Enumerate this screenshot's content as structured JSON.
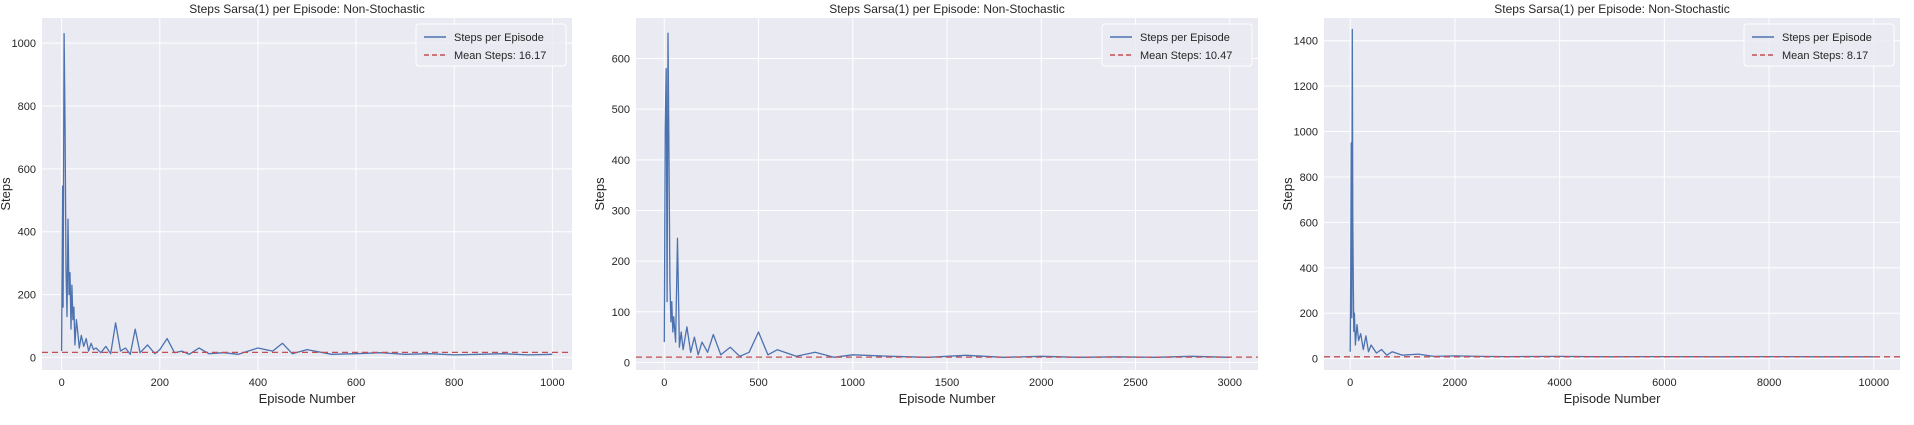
{
  "figure": {
    "background": "#ffffff",
    "plot_background": "#eaeaf2",
    "grid_color": "#ffffff",
    "series_color": "#4c72b0",
    "mean_color": "#c44e52"
  },
  "chart_data": [
    {
      "type": "line",
      "title": "Steps Sarsa(1) per Episode: Non-Stochastic",
      "xlabel": "Episode Number",
      "ylabel": "Steps",
      "xlim": [
        -40,
        1040
      ],
      "ylim": [
        -40,
        1080
      ],
      "xticks": [
        0,
        200,
        400,
        600,
        800,
        1000
      ],
      "yticks": [
        0,
        200,
        400,
        600,
        800,
        1000
      ],
      "grid": true,
      "legend_position": "top-right",
      "legend": [
        "Steps per Episode",
        "Mean Steps: 16.17"
      ],
      "mean": 16.17,
      "n_episodes": 1000,
      "series": [
        {
          "name": "Steps per Episode",
          "x": [
            0,
            2,
            3,
            5,
            7,
            9,
            11,
            13,
            15,
            17,
            19,
            21,
            23,
            25,
            27,
            30,
            33,
            36,
            40,
            45,
            50,
            55,
            60,
            65,
            70,
            80,
            90,
            100,
            110,
            120,
            130,
            140,
            150,
            160,
            175,
            190,
            200,
            215,
            230,
            245,
            260,
            280,
            300,
            330,
            360,
            400,
            430,
            450,
            470,
            500,
            550,
            600,
            650,
            700,
            750,
            800,
            850,
            900,
            950,
            1000
          ],
          "y": [
            20,
            545,
            160,
            1030,
            720,
            280,
            130,
            440,
            200,
            270,
            90,
            230,
            120,
            160,
            40,
            120,
            80,
            30,
            70,
            35,
            60,
            20,
            45,
            25,
            30,
            15,
            35,
            12,
            110,
            20,
            30,
            10,
            90,
            15,
            40,
            12,
            25,
            60,
            15,
            20,
            10,
            30,
            12,
            15,
            10,
            30,
            20,
            45,
            12,
            25,
            10,
            12,
            15,
            10,
            12,
            8,
            10,
            12,
            8,
            10
          ]
        }
      ]
    },
    {
      "type": "line",
      "title": "Steps Sarsa(1) per Episode: Non-Stochastic",
      "xlabel": "Episode Number",
      "ylabel": "Steps",
      "xlim": [
        -150,
        3150
      ],
      "ylim": [
        -15,
        680
      ],
      "xticks": [
        0,
        500,
        1000,
        1500,
        2000,
        2500,
        3000
      ],
      "yticks": [
        0,
        100,
        200,
        300,
        400,
        500,
        600
      ],
      "grid": true,
      "legend_position": "top-right",
      "legend": [
        "Steps per Episode",
        "Mean Steps: 10.47"
      ],
      "mean": 10.47,
      "n_episodes": 3000,
      "series": [
        {
          "name": "Steps per Episode",
          "x": [
            0,
            5,
            10,
            15,
            20,
            25,
            30,
            35,
            40,
            45,
            50,
            60,
            70,
            80,
            90,
            100,
            120,
            140,
            160,
            180,
            200,
            230,
            260,
            300,
            350,
            400,
            450,
            500,
            550,
            600,
            700,
            800,
            900,
            1000,
            1200,
            1400,
            1600,
            1800,
            2000,
            2200,
            2400,
            2600,
            2800,
            3000
          ],
          "y": [
            40,
            460,
            580,
            120,
            650,
            400,
            160,
            80,
            120,
            60,
            90,
            40,
            245,
            30,
            60,
            25,
            70,
            20,
            50,
            15,
            40,
            20,
            55,
            15,
            30,
            12,
            20,
            60,
            15,
            25,
            12,
            20,
            10,
            15,
            12,
            10,
            14,
            10,
            12,
            10,
            11,
            10,
            12,
            10
          ]
        }
      ]
    },
    {
      "type": "line",
      "title": "Steps Sarsa(1) per Episode: Non-Stochastic",
      "xlabel": "Episode Number",
      "ylabel": "Steps",
      "xlim": [
        -500,
        10500
      ],
      "ylim": [
        -50,
        1500
      ],
      "xticks": [
        0,
        2000,
        4000,
        6000,
        8000,
        10000
      ],
      "yticks": [
        0,
        200,
        400,
        600,
        800,
        1000,
        1200,
        1400
      ],
      "grid": true,
      "legend_position": "top-right",
      "legend": [
        "Steps per Episode",
        "Mean Steps: 8.17"
      ],
      "mean": 8.17,
      "n_episodes": 10000,
      "series": [
        {
          "name": "Steps per Episode",
          "x": [
            0,
            10,
            20,
            30,
            40,
            50,
            60,
            70,
            80,
            100,
            130,
            160,
            200,
            250,
            300,
            350,
            400,
            500,
            600,
            700,
            800,
            1000,
            1300,
            1600,
            2000,
            2500,
            3000,
            4000,
            5000,
            6000,
            7000,
            8000,
            9000,
            10000
          ],
          "y": [
            30,
            350,
            950,
            180,
            1450,
            600,
            330,
            120,
            200,
            60,
            150,
            80,
            110,
            40,
            100,
            30,
            60,
            25,
            40,
            15,
            30,
            15,
            20,
            10,
            12,
            10,
            9,
            10,
            8,
            9,
            8,
            9,
            8,
            8
          ]
        }
      ]
    }
  ]
}
